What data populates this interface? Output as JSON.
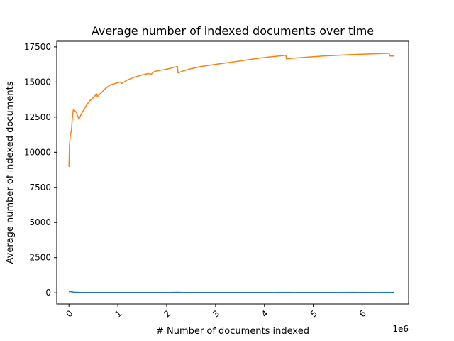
{
  "chart_data": {
    "type": "line",
    "title": "Average number of indexed documents over time",
    "xlabel": "# Number of documents indexed",
    "ylabel": "Average number of indexed documents",
    "x_offset_text": "1e6",
    "x_scale": 1000000,
    "xlim": [
      -0.25,
      6.95
    ],
    "ylim": [
      -800,
      17900
    ],
    "x_ticks": [
      0,
      1,
      2,
      3,
      4,
      5,
      6
    ],
    "y_ticks": [
      0,
      2500,
      5000,
      7500,
      10000,
      12500,
      15000,
      17500
    ],
    "x_tick_rotation": 45,
    "grid": false,
    "legend": "none",
    "series": [
      {
        "color": "#1f77b4",
        "points": [
          [
            0.0,
            60
          ],
          [
            0.02,
            95
          ],
          [
            0.05,
            70
          ],
          [
            0.1,
            40
          ],
          [
            0.2,
            25
          ],
          [
            0.4,
            20
          ],
          [
            0.8,
            20
          ],
          [
            1.2,
            22
          ],
          [
            1.6,
            18
          ],
          [
            2.0,
            20
          ],
          [
            2.22,
            32
          ],
          [
            2.4,
            18
          ],
          [
            2.8,
            22
          ],
          [
            3.2,
            20
          ],
          [
            3.6,
            24
          ],
          [
            4.0,
            20
          ],
          [
            4.45,
            30
          ],
          [
            4.6,
            20
          ],
          [
            5.0,
            22
          ],
          [
            5.4,
            20
          ],
          [
            5.8,
            25
          ],
          [
            6.2,
            20
          ],
          [
            6.6,
            28
          ],
          [
            6.65,
            18
          ]
        ]
      },
      {
        "color": "#ff7f0e",
        "points": [
          [
            0.0,
            8950
          ],
          [
            0.01,
            10500
          ],
          [
            0.03,
            11300
          ],
          [
            0.05,
            11500
          ],
          [
            0.07,
            12500
          ],
          [
            0.09,
            13050
          ],
          [
            0.15,
            12850
          ],
          [
            0.2,
            12350
          ],
          [
            0.25,
            12700
          ],
          [
            0.3,
            13000
          ],
          [
            0.35,
            13300
          ],
          [
            0.42,
            13650
          ],
          [
            0.5,
            13900
          ],
          [
            0.57,
            14150
          ],
          [
            0.58,
            13950
          ],
          [
            0.65,
            14200
          ],
          [
            0.75,
            14550
          ],
          [
            0.85,
            14800
          ],
          [
            0.95,
            14900
          ],
          [
            1.05,
            15000
          ],
          [
            1.08,
            14900
          ],
          [
            1.2,
            15150
          ],
          [
            1.35,
            15350
          ],
          [
            1.5,
            15500
          ],
          [
            1.62,
            15600
          ],
          [
            1.68,
            15550
          ],
          [
            1.75,
            15750
          ],
          [
            1.9,
            15850
          ],
          [
            2.05,
            15950
          ],
          [
            2.15,
            16050
          ],
          [
            2.22,
            16100
          ],
          [
            2.23,
            15650
          ],
          [
            2.35,
            15800
          ],
          [
            2.5,
            15950
          ],
          [
            2.7,
            16100
          ],
          [
            2.9,
            16200
          ],
          [
            3.1,
            16300
          ],
          [
            3.3,
            16400
          ],
          [
            3.5,
            16500
          ],
          [
            3.7,
            16600
          ],
          [
            3.9,
            16700
          ],
          [
            4.1,
            16780
          ],
          [
            4.3,
            16850
          ],
          [
            4.44,
            16900
          ],
          [
            4.45,
            16650
          ],
          [
            4.6,
            16700
          ],
          [
            4.8,
            16750
          ],
          [
            5.0,
            16800
          ],
          [
            5.2,
            16850
          ],
          [
            5.4,
            16880
          ],
          [
            5.6,
            16920
          ],
          [
            5.8,
            16950
          ],
          [
            6.0,
            16980
          ],
          [
            6.2,
            17000
          ],
          [
            6.4,
            17030
          ],
          [
            6.55,
            17050
          ],
          [
            6.57,
            16850
          ],
          [
            6.65,
            16850
          ]
        ]
      }
    ]
  }
}
